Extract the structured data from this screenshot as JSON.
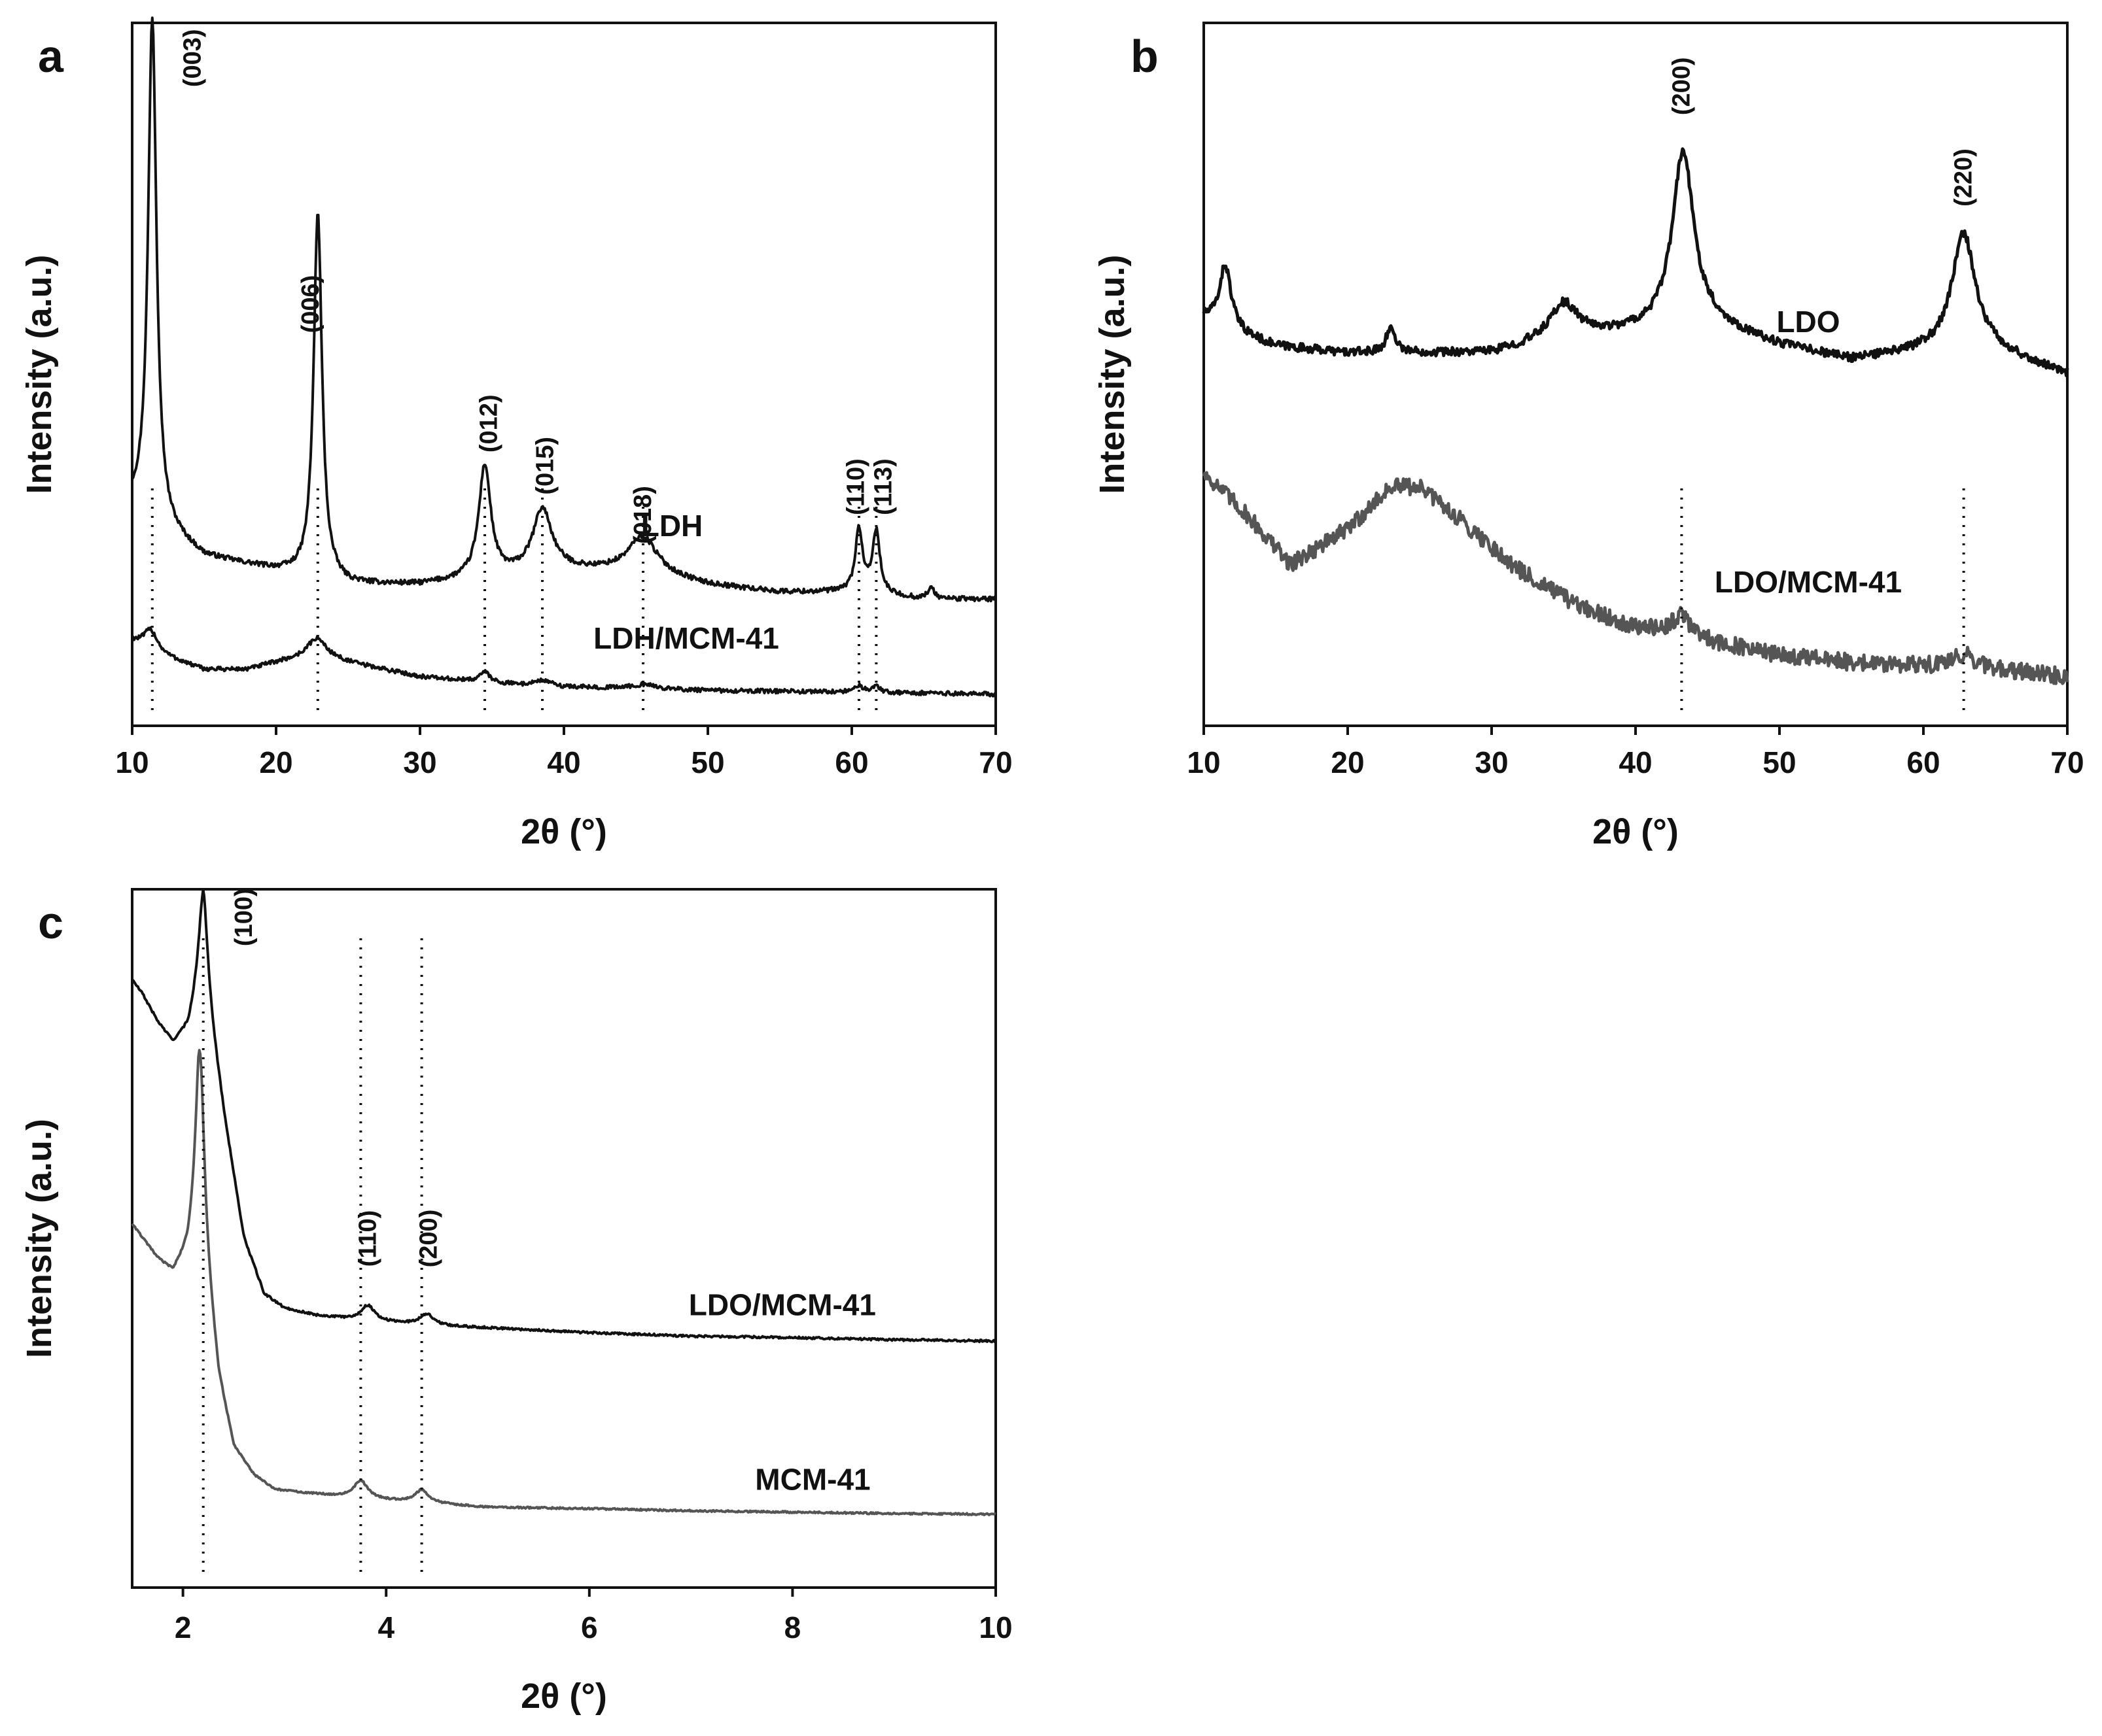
{
  "figure": {
    "chart_data": [
      {
        "type": "line",
        "panel": "a",
        "xlabel": "2θ (°)",
        "ylabel": "Intensity (a.u.)",
        "xlim": [
          10,
          70
        ],
        "ylim": [
          0,
          100
        ],
        "xticks": [
          "10",
          "20",
          "30",
          "40",
          "50",
          "60",
          "70"
        ],
        "series": [
          {
            "name": "LDH",
            "color": "#111111",
            "noise": 0.35,
            "baseline_x": [
              10,
              12,
              15,
              20,
              25,
              30,
              35,
              40,
              45,
              50,
              55,
              60,
              65,
              70
            ],
            "baseline_y": [
              31,
              28,
              24,
              22,
              20,
              20,
              21,
              22,
              22,
              20,
              19,
              19,
              18,
              18
            ],
            "peaks": [
              {
                "x": 11.4,
                "h": 72,
                "w": 0.35
              },
              {
                "x": 22.9,
                "h": 52,
                "w": 0.35
              },
              {
                "x": 34.5,
                "h": 16,
                "w": 0.5
              },
              {
                "x": 38.5,
                "h": 9,
                "w": 0.8
              },
              {
                "x": 45.5,
                "h": 5,
                "w": 1.2
              },
              {
                "x": 60.5,
                "h": 9,
                "w": 0.3
              },
              {
                "x": 61.7,
                "h": 9,
                "w": 0.3
              },
              {
                "x": 65.5,
                "h": 1.5,
                "w": 0.3
              }
            ]
          },
          {
            "name": "LDH/MCM-41",
            "color": "#111111",
            "noise": 0.3,
            "baseline_x": [
              10,
              12,
              15,
              18,
              20,
              23,
              25,
              30,
              35,
              40,
              50,
              60,
              70
            ],
            "baseline_y": [
              12,
              10,
              8,
              8,
              9,
              10,
              9,
              7,
              6,
              5.5,
              5,
              4.8,
              4.5
            ],
            "peaks": [
              {
                "x": 11.3,
                "h": 3,
                "w": 0.6
              },
              {
                "x": 22.8,
                "h": 2.5,
                "w": 0.8
              },
              {
                "x": 34.5,
                "h": 1.5,
                "w": 0.5
              },
              {
                "x": 38.5,
                "h": 0.8,
                "w": 0.7
              },
              {
                "x": 45.5,
                "h": 0.6,
                "w": 1.2
              },
              {
                "x": 60.5,
                "h": 1,
                "w": 0.3
              },
              {
                "x": 61.7,
                "h": 1,
                "w": 0.3
              }
            ]
          }
        ],
        "series_labels": [
          {
            "text": "LDH",
            "x": 47.5,
            "y": 27
          },
          {
            "text": "LDH/MCM-41",
            "x": 48.5,
            "y": 11
          }
        ],
        "reflections": [
          {
            "label": "(003)",
            "x": 11.4,
            "text_x": 14.2,
            "text_y": 95
          },
          {
            "label": "(006)",
            "x": 22.9,
            "text_x": 22.4,
            "text_y": 60
          },
          {
            "label": "(012)",
            "x": 34.5,
            "text_x": 34.8,
            "text_y": 43
          },
          {
            "label": "(015)",
            "x": 38.5,
            "text_x": 38.7,
            "text_y": 37
          },
          {
            "label": "(018)",
            "x": 45.5,
            "text_x": 45.5,
            "text_y": 30
          },
          {
            "label": "(110)",
            "x": 60.5,
            "text_x": 60.3,
            "text_y": 34
          },
          {
            "label": "(113)",
            "x": 61.7,
            "text_x": 62.2,
            "text_y": 34
          }
        ]
      },
      {
        "type": "line",
        "panel": "b",
        "xlabel": "2θ (°)",
        "ylabel": "Intensity (a.u.)",
        "xlim": [
          10,
          70
        ],
        "ylim": [
          0,
          100
        ],
        "xticks": [
          "10",
          "20",
          "30",
          "40",
          "50",
          "60",
          "70"
        ],
        "series": [
          {
            "name": "LDO",
            "color": "#111111",
            "noise": 0.6,
            "baseline_x": [
              10,
              12,
              15,
              20,
              25,
              30,
              35,
              40,
              45,
              50,
              55,
              60,
              65,
              70
            ],
            "baseline_y": [
              58,
              56,
              54,
              53,
              53,
              53,
              55,
              56,
              57,
              54,
              52,
              53,
              53,
              50
            ],
            "peaks": [
              {
                "x": 11.5,
                "h": 9,
                "w": 0.5
              },
              {
                "x": 23,
                "h": 3.5,
                "w": 0.4
              },
              {
                "x": 35,
                "h": 5,
                "w": 1.2
              },
              {
                "x": 43.3,
                "h": 25,
                "w": 0.9
              },
              {
                "x": 62.8,
                "h": 17,
                "w": 1.0
              }
            ]
          },
          {
            "name": "LDO/MCM-41",
            "color": "#555555",
            "noise": 1.2,
            "baseline_x": [
              10,
              13,
              16,
              20,
              23,
              25,
              28,
              32,
              36,
              40,
              45,
              50,
              55,
              60,
              65,
              70
            ],
            "baseline_y": [
              36,
              30,
              23,
              28,
              34,
              34,
              29,
              22,
              17,
              14,
              12,
              10,
              9,
              8.5,
              8,
              7
            ],
            "peaks": [
              {
                "x": 43.2,
                "h": 3,
                "w": 0.8
              },
              {
                "x": 62.8,
                "h": 2,
                "w": 0.9
              }
            ]
          }
        ],
        "series_labels": [
          {
            "text": "LDO",
            "x": 52,
            "y": 56
          },
          {
            "text": "LDO/MCM-41",
            "x": 52,
            "y": 19
          }
        ],
        "reflections": [
          {
            "label": "(200)",
            "x": 43.2,
            "text_x": 43.2,
            "text_y": 91
          },
          {
            "label": "(220)",
            "x": 62.8,
            "text_x": 62.8,
            "text_y": 78
          }
        ]
      },
      {
        "type": "line",
        "panel": "c",
        "xlabel": "2θ (°)",
        "ylabel": "Intensity (a.u.)",
        "xlim": [
          1.5,
          10
        ],
        "ylim": [
          0,
          100
        ],
        "xticks": [
          "2",
          "4",
          "6",
          "8",
          "10"
        ],
        "series": [
          {
            "name": "LDO/MCM-41",
            "color": "#111111",
            "noise": 0.15,
            "baseline_x": [
              1.5,
              1.6,
              1.75,
              1.9,
              2.05,
              2.2,
              2.4,
              2.6,
              2.8,
              3.0,
              3.3,
              3.6,
              4.0,
              4.5,
              5,
              6,
              7,
              8,
              9,
              10
            ],
            "baseline_y": [
              87,
              85,
              81,
              78,
              80,
              88,
              68,
              50,
              42,
              40,
              39,
              38.5,
              38,
              37.5,
              37.2,
              36.5,
              36,
              35.8,
              35.5,
              35.3
            ],
            "peaks": [
              {
                "x": 2.2,
                "h": 12,
                "w": 0.055
              },
              {
                "x": 3.82,
                "h": 2.2,
                "w": 0.08
              },
              {
                "x": 4.4,
                "h": 1.6,
                "w": 0.08
              }
            ]
          },
          {
            "name": "MCM-41",
            "color": "#555555",
            "noise": 0.12,
            "baseline_x": [
              1.5,
              1.6,
              1.75,
              1.9,
              2.05,
              2.15,
              2.35,
              2.5,
              2.7,
              2.9,
              3.2,
              3.6,
              4.0,
              4.5,
              5,
              6,
              7,
              8,
              9,
              10
            ],
            "baseline_y": [
              52,
              50,
              47,
              45,
              48,
              55,
              30,
              20,
              16,
              14,
              13.5,
              13,
              12.5,
              12,
              11.5,
              11.3,
              11,
              10.8,
              10.6,
              10.5
            ],
            "peaks": [
              {
                "x": 2.17,
                "h": 24,
                "w": 0.05
              },
              {
                "x": 3.75,
                "h": 2.5,
                "w": 0.08
              },
              {
                "x": 4.35,
                "h": 1.8,
                "w": 0.08
              }
            ]
          }
        ],
        "series_labels": [
          {
            "text": "LDO/MCM-41",
            "x": 7.9,
            "y": 39
          },
          {
            "text": "MCM-41",
            "x": 8.2,
            "y": 14
          }
        ],
        "reflections": [
          {
            "label": "(100)",
            "x": 2.2,
            "text_x": 2.6,
            "text_y": 96
          },
          {
            "label": "(110)",
            "x": 3.75,
            "text_x": 3.82,
            "text_y": 50
          },
          {
            "label": "(200)",
            "x": 4.35,
            "text_x": 4.42,
            "text_y": 50
          }
        ]
      }
    ]
  }
}
